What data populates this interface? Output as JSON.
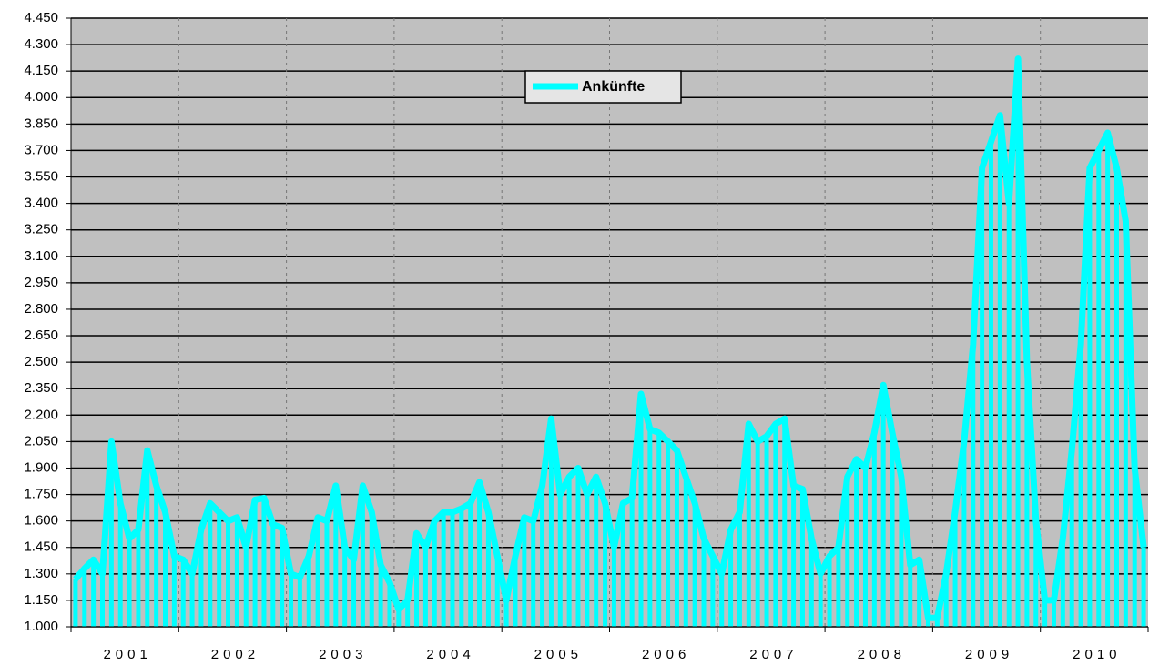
{
  "chart_data": {
    "type": "line",
    "categories": [
      null,
      null,
      null,
      null,
      null,
      null,
      "2001",
      null,
      null,
      null,
      null,
      null,
      null,
      null,
      null,
      null,
      null,
      null,
      "2002",
      null,
      null,
      null,
      null,
      null,
      null,
      null,
      null,
      null,
      null,
      null,
      "2003",
      null,
      null,
      null,
      null,
      null,
      null,
      null,
      null,
      null,
      null,
      null,
      "2004",
      null,
      null,
      null,
      null,
      null,
      null,
      null,
      null,
      null,
      null,
      null,
      "2005",
      null,
      null,
      null,
      null,
      null,
      null,
      null,
      null,
      null,
      null,
      null,
      "2006",
      null,
      null,
      null,
      null,
      null,
      null,
      null,
      null,
      null,
      null,
      null,
      "2007",
      null,
      null,
      null,
      null,
      null,
      null,
      null,
      null,
      null,
      null,
      null,
      "2008",
      null,
      null,
      null,
      null,
      null,
      null,
      null,
      null,
      null,
      null,
      null,
      "2009",
      null,
      null,
      null,
      null,
      null,
      null,
      null,
      null,
      null,
      null,
      null,
      "2010",
      null,
      null,
      null,
      null,
      null
    ],
    "series": [
      {
        "name": "Ankünfte",
        "color": "#00ffff",
        "values": [
          1270,
          1330,
          1380,
          1300,
          2050,
          1700,
          1500,
          1550,
          2000,
          1800,
          1650,
          1400,
          1380,
          1300,
          1550,
          1700,
          1650,
          1600,
          1620,
          1450,
          1720,
          1730,
          1580,
          1560,
          1300,
          1280,
          1400,
          1620,
          1600,
          1800,
          1450,
          1380,
          1800,
          1650,
          1350,
          1250,
          1100,
          1150,
          1530,
          1450,
          1600,
          1650,
          1650,
          1670,
          1700,
          1820,
          1650,
          1400,
          1150,
          1400,
          1620,
          1600,
          1800,
          2180,
          1750,
          1850,
          1900,
          1750,
          1850,
          1700,
          1450,
          1700,
          1730,
          2320,
          2120,
          2100,
          2050,
          2000,
          1850,
          1700,
          1500,
          1400,
          1300,
          1550,
          1650,
          2150,
          2050,
          2080,
          2150,
          2180,
          1800,
          1780,
          1500,
          1300,
          1400,
          1450,
          1850,
          1950,
          1900,
          2100,
          2370,
          2100,
          1850,
          1350,
          1380,
          1050,
          1050,
          1300,
          1650,
          2050,
          2600,
          3600,
          3750,
          3900,
          3400,
          4220,
          2500,
          1600,
          1150,
          1150,
          1500,
          2000,
          2600,
          3600,
          3700,
          3800,
          3600,
          3300,
          1900,
          1450
        ]
      }
    ],
    "ylim": [
      1000,
      4450
    ],
    "yticks": [
      {
        "value": 1000,
        "label": "1.000"
      },
      {
        "value": 1150,
        "label": "1.150"
      },
      {
        "value": 1300,
        "label": "1.300"
      },
      {
        "value": 1450,
        "label": "1.450"
      },
      {
        "value": 1600,
        "label": "1.600"
      },
      {
        "value": 1750,
        "label": "1.750"
      },
      {
        "value": 1900,
        "label": "1.900"
      },
      {
        "value": 2050,
        "label": "2.050"
      },
      {
        "value": 2200,
        "label": "2.200"
      },
      {
        "value": 2350,
        "label": "2.350"
      },
      {
        "value": 2500,
        "label": "2.500"
      },
      {
        "value": 2650,
        "label": "2.650"
      },
      {
        "value": 2800,
        "label": "2.800"
      },
      {
        "value": 2950,
        "label": "2.950"
      },
      {
        "value": 3100,
        "label": "3.100"
      },
      {
        "value": 3250,
        "label": "3.250"
      },
      {
        "value": 3400,
        "label": "3.400"
      },
      {
        "value": 3550,
        "label": "3.550"
      },
      {
        "value": 3700,
        "label": "3.700"
      },
      {
        "value": 3850,
        "label": "3.850"
      },
      {
        "value": 4000,
        "label": "4.000"
      },
      {
        "value": 4150,
        "label": "4.150"
      },
      {
        "value": 4300,
        "label": "4.300"
      },
      {
        "value": 4450,
        "label": "4.450"
      }
    ],
    "grid": true,
    "legend": "top"
  }
}
